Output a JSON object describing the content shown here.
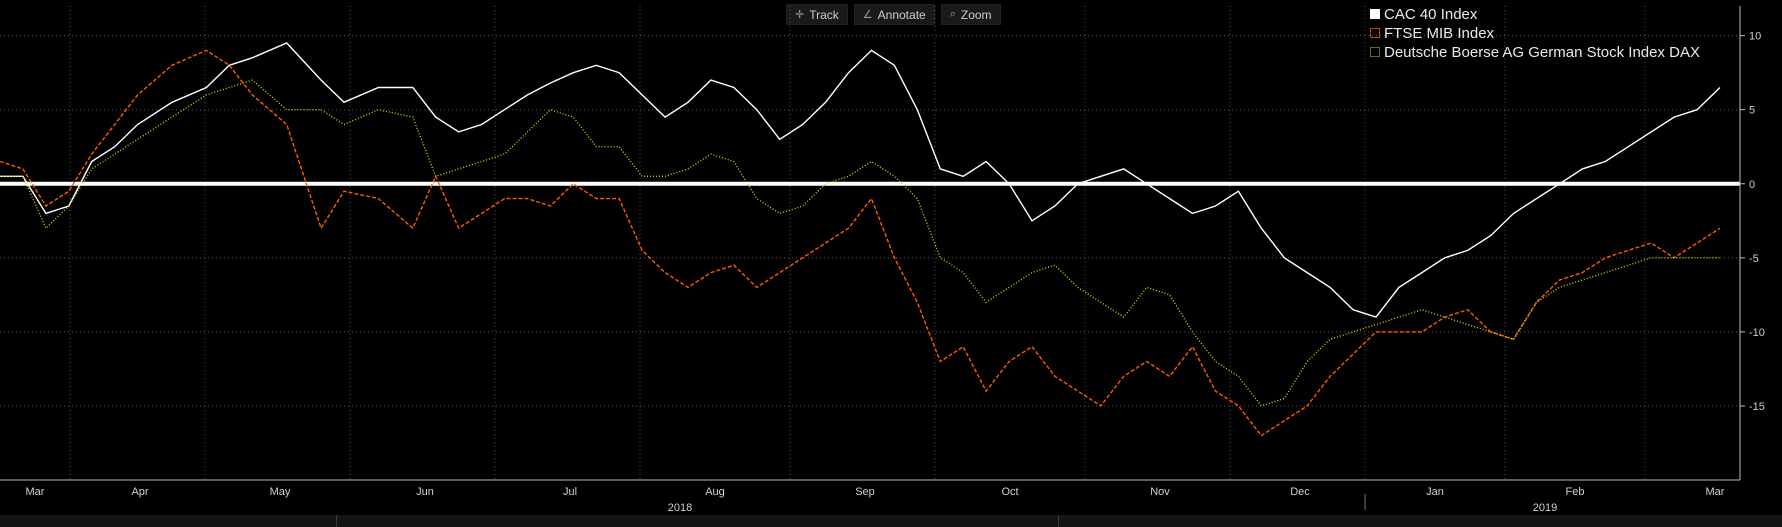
{
  "toolbar": {
    "track_label": "Track",
    "annotate_label": "Annotate",
    "zoom_label": "Zoom"
  },
  "chart_data": {
    "type": "line",
    "ylim": [
      -20,
      12
    ],
    "yticks": [
      10,
      5,
      0,
      -5,
      -10,
      -15
    ],
    "ytick_labels": [
      "10",
      "5",
      "0",
      "-5",
      "-10",
      "-15"
    ],
    "grid": true,
    "legend_position": "top-right",
    "x_months": [
      "Mar",
      "Apr",
      "May",
      "Jun",
      "Jul",
      "Aug",
      "Sep",
      "Oct",
      "Nov",
      "Dec",
      "Jan",
      "Feb",
      "Mar"
    ],
    "years": [
      "2018",
      "2019"
    ],
    "series": [
      {
        "name": "CAC 40 Index",
        "color": "#ffffff",
        "style": "solid",
        "values": [
          0.5,
          0.5,
          -2,
          -1.5,
          1.5,
          2.5,
          4,
          5.5,
          6.5,
          8,
          8.5,
          9.5,
          7,
          5.5,
          6.5,
          6.5,
          4.5,
          3.5,
          4,
          5,
          6,
          6.8,
          7.5,
          8,
          7.5,
          6,
          4.5,
          5.5,
          7,
          6.5,
          5,
          3,
          4,
          5.5,
          7.5,
          9,
          8,
          5,
          1,
          0.5,
          1.5,
          0,
          -2.5,
          -1.5,
          0,
          0.5,
          1,
          0,
          -1,
          -2,
          -1.5,
          -0.5,
          -3,
          -5,
          -6,
          -7,
          -8.5,
          -9,
          -7,
          -6,
          -5,
          -4.5,
          -3.5,
          -2,
          -1,
          0,
          1,
          1.5,
          2.5,
          3.5,
          4.5,
          5,
          6.5
        ],
        "x_months": [
          0,
          0.2,
          0.4,
          0.6,
          0.8,
          1.0,
          1.2,
          1.5,
          1.8,
          2.0,
          2.2,
          2.5,
          2.8,
          3.0,
          3.3,
          3.6,
          3.8,
          4.0,
          4.2,
          4.4,
          4.6,
          4.8,
          5.0,
          5.2,
          5.4,
          5.6,
          5.8,
          6.0,
          6.2,
          6.4,
          6.6,
          6.8,
          7.0,
          7.2,
          7.4,
          7.6,
          7.8,
          8.0,
          8.2,
          8.4,
          8.6,
          8.8,
          9.0,
          9.2,
          9.4,
          9.6,
          9.8,
          10.0,
          10.2,
          10.4,
          10.6,
          10.8,
          11.0,
          11.2,
          11.4,
          11.6,
          11.8,
          12.0,
          12.2,
          12.4,
          12.6,
          12.8,
          13.0,
          13.2,
          13.4,
          13.6,
          13.8,
          14.0,
          14.2,
          14.4,
          14.6,
          14.8,
          15.0
        ]
      },
      {
        "name": "FTSE MIB Index",
        "color": "#ff5a00",
        "style": "dashed",
        "values": [
          1.5,
          1,
          -1.5,
          -0.5,
          2,
          4,
          6,
          8,
          9,
          8,
          6,
          4,
          -3,
          -0.5,
          -1,
          -3,
          0.5,
          -3,
          -2,
          -1,
          -1,
          -1.5,
          0,
          -1,
          -1,
          -4.5,
          -6,
          -7,
          -6,
          -5.5,
          -7,
          -6,
          -5,
          -4,
          -3,
          -1,
          -5,
          -8,
          -12,
          -11,
          -14,
          -12,
          -11,
          -13,
          -14,
          -15,
          -13,
          -12,
          -13,
          -11,
          -14,
          -15,
          -17,
          -16,
          -15,
          -13,
          -11.5,
          -10,
          -10,
          -10,
          -9,
          -8.5,
          -10,
          -10.5,
          -8,
          -6.5,
          -6,
          -5,
          -4.5,
          -4,
          -5,
          -4,
          -3
        ],
        "x_months": [
          0,
          0.2,
          0.4,
          0.6,
          0.8,
          1.0,
          1.2,
          1.5,
          1.8,
          2.0,
          2.2,
          2.5,
          2.8,
          3.0,
          3.3,
          3.6,
          3.8,
          4.0,
          4.2,
          4.4,
          4.6,
          4.8,
          5.0,
          5.2,
          5.4,
          5.6,
          5.8,
          6.0,
          6.2,
          6.4,
          6.6,
          6.8,
          7.0,
          7.2,
          7.4,
          7.6,
          7.8,
          8.0,
          8.2,
          8.4,
          8.6,
          8.8,
          9.0,
          9.2,
          9.4,
          9.6,
          9.8,
          10.0,
          10.2,
          10.4,
          10.6,
          10.8,
          11.0,
          11.2,
          11.4,
          11.6,
          11.8,
          12.0,
          12.2,
          12.4,
          12.6,
          12.8,
          13.0,
          13.2,
          13.4,
          13.6,
          13.8,
          14.0,
          14.2,
          14.4,
          14.6,
          14.8,
          15.0
        ]
      },
      {
        "name": "Deutsche Boerse AG German Stock Index DAX",
        "color": "#d7d600",
        "style": "dotted",
        "values": [
          0.5,
          0.5,
          -3,
          -1.5,
          1,
          2,
          3,
          4.5,
          6,
          6.5,
          7,
          5,
          5,
          4,
          5,
          4.5,
          0.5,
          1,
          1.5,
          2,
          3.5,
          5,
          4.5,
          2.5,
          2.5,
          0.5,
          0.5,
          1,
          2,
          1.5,
          -1,
          -2,
          -1.5,
          0,
          0.5,
          1.5,
          0.5,
          -1,
          -5,
          -6,
          -8,
          -7,
          -6,
          -5.5,
          -7,
          -8,
          -9,
          -7,
          -7.5,
          -10,
          -12,
          -13,
          -15,
          -14.5,
          -12,
          -10.5,
          -10,
          -9.5,
          -9,
          -8.5,
          -9,
          -9.5,
          -10,
          -10.5,
          -8,
          -7,
          -6.5,
          -6,
          -5.5,
          -5,
          -5,
          -5,
          -5
        ],
        "x_months": [
          0,
          0.2,
          0.4,
          0.6,
          0.8,
          1.0,
          1.2,
          1.5,
          1.8,
          2.0,
          2.2,
          2.5,
          2.8,
          3.0,
          3.3,
          3.6,
          3.8,
          4.0,
          4.2,
          4.4,
          4.6,
          4.8,
          5.0,
          5.2,
          5.4,
          5.6,
          5.8,
          6.0,
          6.2,
          6.4,
          6.6,
          6.8,
          7.0,
          7.2,
          7.4,
          7.6,
          7.8,
          8.0,
          8.2,
          8.4,
          8.6,
          8.8,
          9.0,
          9.2,
          9.4,
          9.6,
          9.8,
          10.0,
          10.2,
          10.4,
          10.6,
          10.8,
          11.0,
          11.2,
          11.4,
          11.6,
          11.8,
          12.0,
          12.2,
          12.4,
          12.6,
          12.8,
          13.0,
          13.2,
          13.4,
          13.6,
          13.8,
          14.0,
          14.2,
          14.4,
          14.6,
          14.8,
          15.0
        ]
      }
    ]
  }
}
